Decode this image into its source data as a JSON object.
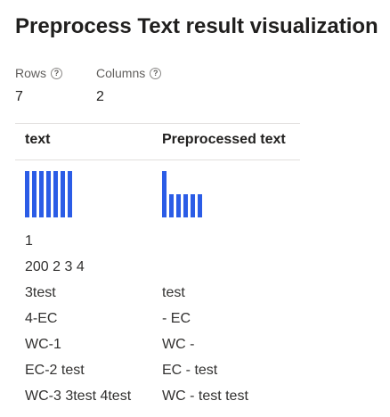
{
  "title": "Preprocess Text result visualization",
  "stats": {
    "rows_label": "Rows",
    "rows_value": "7",
    "columns_label": "Columns",
    "columns_value": "2"
  },
  "info_icon": "info-circle-icon",
  "columns": [
    "text",
    "Preprocessed text"
  ],
  "histograms": {
    "text": [
      1,
      1,
      1,
      1,
      1,
      1,
      1
    ],
    "preprocessed_text": [
      2,
      1,
      1,
      1,
      1,
      1
    ]
  },
  "accent_color": "#2b5ce6",
  "rows": [
    [
      "1",
      ""
    ],
    [
      "200 2 3 4",
      ""
    ],
    [
      "3test",
      "test"
    ],
    [
      "4-EC",
      "- EC"
    ],
    [
      "WC-1",
      "WC -"
    ],
    [
      "EC-2 test",
      "EC - test"
    ],
    [
      "WC-3 3test 4test",
      "WC - test test"
    ]
  ]
}
